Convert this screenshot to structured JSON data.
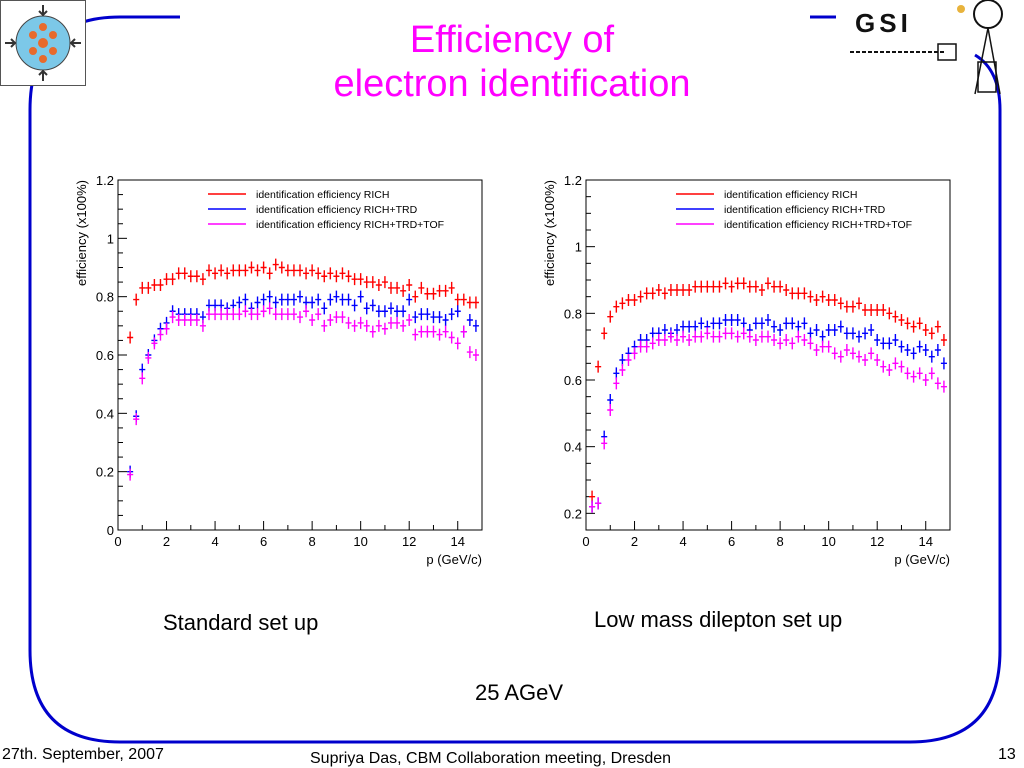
{
  "slide": {
    "title_line1": "Efficiency of",
    "title_line2": "electron identification",
    "caption_left": "Standard set up",
    "caption_right": "Low mass dilepton set up",
    "energy_label": "25 AGeV",
    "footer_date": "27th. September, 2007",
    "footer_center": "Supriya Das, CBM Collaboration meeting, Dresden",
    "page_number": "13"
  },
  "logos": {
    "left": "cbm-logo",
    "right_text": "GSI"
  },
  "colors": {
    "title": "#ff00ff",
    "frame": "#0000cc",
    "rich": "#ff0000",
    "rich_trd": "#0000ff",
    "rich_trd_tof": "#ff00ff"
  },
  "chart_data": [
    {
      "type": "scatter",
      "xlabel": "p (GeV/c)",
      "ylabel": "efficiency (x100%)",
      "xlim": [
        0,
        15
      ],
      "ylim": [
        0,
        1.2
      ],
      "xticks": [
        "0",
        "2",
        "4",
        "6",
        "8",
        "10",
        "12",
        "14"
      ],
      "yticks": [
        "0",
        "0.2",
        "0.4",
        "0.6",
        "0.8",
        "1",
        "1.2"
      ],
      "legend_position": "top-right",
      "x": [
        0.5,
        0.75,
        1.0,
        1.25,
        1.5,
        1.75,
        2.0,
        2.25,
        2.5,
        2.75,
        3.0,
        3.25,
        3.5,
        3.75,
        4.0,
        4.25,
        4.5,
        4.75,
        5.0,
        5.25,
        5.5,
        5.75,
        6.0,
        6.25,
        6.5,
        6.75,
        7.0,
        7.25,
        7.5,
        7.75,
        8.0,
        8.25,
        8.5,
        8.75,
        9.0,
        9.25,
        9.5,
        9.75,
        10.0,
        10.25,
        10.5,
        10.75,
        11.0,
        11.25,
        11.5,
        11.75,
        12.0,
        12.25,
        12.5,
        12.75,
        13.0,
        13.25,
        13.5,
        13.75,
        14.0,
        14.25,
        14.5,
        14.75
      ],
      "series": [
        {
          "name": "identification efficiency RICH",
          "color": "#ff0000",
          "values": [
            0.66,
            0.79,
            0.83,
            0.83,
            0.84,
            0.84,
            0.86,
            0.86,
            0.88,
            0.88,
            0.87,
            0.87,
            0.86,
            0.89,
            0.88,
            0.89,
            0.88,
            0.89,
            0.89,
            0.89,
            0.9,
            0.89,
            0.9,
            0.88,
            0.91,
            0.9,
            0.89,
            0.89,
            0.89,
            0.88,
            0.89,
            0.88,
            0.87,
            0.88,
            0.87,
            0.88,
            0.87,
            0.86,
            0.86,
            0.85,
            0.85,
            0.84,
            0.85,
            0.83,
            0.83,
            0.82,
            0.84,
            0.8,
            0.83,
            0.81,
            0.81,
            0.82,
            0.82,
            0.83,
            0.79,
            0.79,
            0.78,
            0.78
          ]
        },
        {
          "name": "identification efficiency RICH+TRD",
          "color": "#0000ff",
          "values": [
            0.2,
            0.39,
            0.55,
            0.6,
            0.65,
            0.69,
            0.71,
            0.75,
            0.74,
            0.74,
            0.74,
            0.74,
            0.73,
            0.77,
            0.77,
            0.77,
            0.76,
            0.77,
            0.78,
            0.79,
            0.76,
            0.78,
            0.79,
            0.8,
            0.78,
            0.79,
            0.79,
            0.79,
            0.8,
            0.78,
            0.78,
            0.79,
            0.76,
            0.79,
            0.8,
            0.79,
            0.79,
            0.77,
            0.8,
            0.76,
            0.77,
            0.75,
            0.75,
            0.76,
            0.75,
            0.75,
            0.79,
            0.73,
            0.74,
            0.74,
            0.73,
            0.73,
            0.72,
            0.74,
            0.75,
            0.68,
            0.72,
            0.7
          ]
        },
        {
          "name": "identification efficiency RICH+TRD+TOF",
          "color": "#ff00ff",
          "values": [
            0.19,
            0.38,
            0.52,
            0.59,
            0.64,
            0.67,
            0.69,
            0.73,
            0.72,
            0.72,
            0.72,
            0.72,
            0.7,
            0.74,
            0.74,
            0.74,
            0.74,
            0.74,
            0.74,
            0.75,
            0.74,
            0.74,
            0.75,
            0.76,
            0.74,
            0.74,
            0.74,
            0.74,
            0.73,
            0.75,
            0.72,
            0.74,
            0.7,
            0.72,
            0.73,
            0.73,
            0.71,
            0.7,
            0.71,
            0.7,
            0.68,
            0.7,
            0.69,
            0.71,
            0.71,
            0.7,
            0.72,
            0.67,
            0.68,
            0.68,
            0.68,
            0.67,
            0.68,
            0.66,
            0.64,
            0.68,
            0.61,
            0.6
          ]
        }
      ]
    },
    {
      "type": "scatter",
      "xlabel": "p (GeV/c)",
      "ylabel": "efficiency (x100%)",
      "xlim": [
        0,
        15
      ],
      "ylim": [
        0.15,
        1.2
      ],
      "xticks": [
        "0",
        "2",
        "4",
        "6",
        "8",
        "10",
        "12",
        "14"
      ],
      "yticks": [
        "0.2",
        "0.4",
        "0.6",
        "0.8",
        "1",
        "1.2"
      ],
      "legend_position": "top-right",
      "x": [
        0.25,
        0.5,
        0.75,
        1.0,
        1.25,
        1.5,
        1.75,
        2.0,
        2.25,
        2.5,
        2.75,
        3.0,
        3.25,
        3.5,
        3.75,
        4.0,
        4.25,
        4.5,
        4.75,
        5.0,
        5.25,
        5.5,
        5.75,
        6.0,
        6.25,
        6.5,
        6.75,
        7.0,
        7.25,
        7.5,
        7.75,
        8.0,
        8.25,
        8.5,
        8.75,
        9.0,
        9.25,
        9.5,
        9.75,
        10.0,
        10.25,
        10.5,
        10.75,
        11.0,
        11.25,
        11.5,
        11.75,
        12.0,
        12.25,
        12.5,
        12.75,
        13.0,
        13.25,
        13.5,
        13.75,
        14.0,
        14.25,
        14.5,
        14.75
      ],
      "series": [
        {
          "name": "identification efficiency RICH",
          "color": "#ff0000",
          "values": [
            0.25,
            0.64,
            0.74,
            0.79,
            0.82,
            0.83,
            0.84,
            0.84,
            0.85,
            0.86,
            0.86,
            0.87,
            0.86,
            0.87,
            0.87,
            0.87,
            0.87,
            0.88,
            0.88,
            0.88,
            0.88,
            0.88,
            0.89,
            0.88,
            0.89,
            0.89,
            0.88,
            0.88,
            0.87,
            0.89,
            0.88,
            0.88,
            0.87,
            0.86,
            0.86,
            0.86,
            0.85,
            0.84,
            0.85,
            0.84,
            0.84,
            0.83,
            0.82,
            0.82,
            0.83,
            0.81,
            0.81,
            0.81,
            0.81,
            0.8,
            0.79,
            0.78,
            0.77,
            0.76,
            0.77,
            0.75,
            0.74,
            0.76,
            0.72
          ]
        },
        {
          "name": "identification efficiency RICH+TRD",
          "color": "#0000ff",
          "values": [
            0.22,
            0.23,
            0.43,
            0.54,
            0.62,
            0.66,
            0.68,
            0.7,
            0.72,
            0.72,
            0.74,
            0.74,
            0.75,
            0.74,
            0.75,
            0.76,
            0.76,
            0.76,
            0.77,
            0.76,
            0.77,
            0.77,
            0.78,
            0.78,
            0.78,
            0.77,
            0.75,
            0.77,
            0.77,
            0.78,
            0.76,
            0.75,
            0.77,
            0.77,
            0.76,
            0.77,
            0.74,
            0.75,
            0.73,
            0.75,
            0.75,
            0.76,
            0.74,
            0.74,
            0.73,
            0.74,
            0.75,
            0.72,
            0.71,
            0.71,
            0.72,
            0.7,
            0.69,
            0.68,
            0.7,
            0.69,
            0.67,
            0.69,
            0.65
          ]
        },
        {
          "name": "identification efficiency RICH+TRD+TOF",
          "color": "#ff00ff",
          "values": [
            0.22,
            0.23,
            0.41,
            0.51,
            0.59,
            0.63,
            0.66,
            0.68,
            0.7,
            0.7,
            0.71,
            0.72,
            0.72,
            0.73,
            0.72,
            0.73,
            0.72,
            0.73,
            0.73,
            0.74,
            0.73,
            0.73,
            0.74,
            0.74,
            0.73,
            0.74,
            0.73,
            0.72,
            0.73,
            0.73,
            0.72,
            0.71,
            0.72,
            0.71,
            0.73,
            0.72,
            0.71,
            0.69,
            0.7,
            0.7,
            0.68,
            0.67,
            0.69,
            0.68,
            0.67,
            0.66,
            0.68,
            0.66,
            0.64,
            0.63,
            0.65,
            0.64,
            0.62,
            0.61,
            0.62,
            0.6,
            0.62,
            0.59,
            0.58
          ]
        }
      ]
    }
  ]
}
